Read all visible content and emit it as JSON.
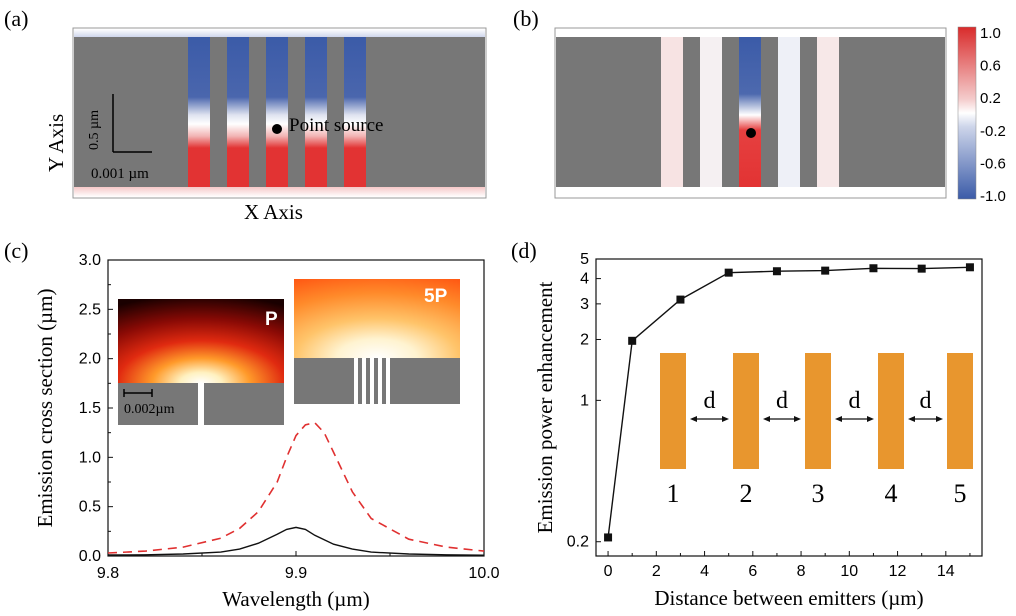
{
  "panels": {
    "a": {
      "label": "(a)",
      "x_axis_label": "X Axis",
      "y_axis_label": "Y Axis",
      "scale_vertical": "0.5 µm",
      "scale_horizontal": "0.001 µm",
      "annotation": "Point source"
    },
    "b": {
      "label": "(b)",
      "colorbar": {
        "ticks": [
          "1.0",
          "0.6",
          "0.2",
          "-0.2",
          "-0.6",
          "-1.0"
        ],
        "colors": [
          "#d92b2b",
          "#ffffff",
          "#3b5ba8"
        ]
      }
    },
    "c": {
      "label": "(c)",
      "inset_p": {
        "label": "P",
        "scale": "0.002µm"
      },
      "inset_5p": {
        "label": "5P"
      }
    },
    "d": {
      "label": "(d)",
      "schematic": {
        "gap_label": "d",
        "emitters": [
          "1",
          "2",
          "3",
          "4",
          "5"
        ]
      }
    }
  },
  "colors": {
    "grey": "#777777",
    "red": "#e03030",
    "blue": "#3b5ba8",
    "orange": "#e8962e",
    "dashed": "#e03030"
  },
  "chart_data": [
    {
      "type": "line",
      "panel": "c",
      "xlabel": "Wavelength (µm)",
      "ylabel": "Emission cross section (µm)",
      "xlim": [
        9.8,
        10.0
      ],
      "ylim": [
        0.0,
        3.0
      ],
      "xticks": [
        "9.8",
        "9.9",
        "10.0"
      ],
      "xtick_values": [
        9.8,
        9.9,
        10.0
      ],
      "yticks": [
        "0.0",
        "0.5",
        "1.0",
        "1.5",
        "2.0",
        "2.5",
        "3.0"
      ],
      "ytick_values": [
        0.0,
        0.5,
        1.0,
        1.5,
        2.0,
        2.5,
        3.0
      ],
      "series": [
        {
          "style": "solid",
          "color": "#111111",
          "x": [
            9.8,
            9.82,
            9.84,
            9.86,
            9.87,
            9.88,
            9.89,
            9.895,
            9.9,
            9.905,
            9.91,
            9.92,
            9.93,
            9.94,
            9.96,
            9.98,
            10.0
          ],
          "y": [
            0.01,
            0.012,
            0.02,
            0.04,
            0.07,
            0.13,
            0.22,
            0.27,
            0.29,
            0.27,
            0.21,
            0.12,
            0.07,
            0.04,
            0.02,
            0.012,
            0.008
          ]
        },
        {
          "style": "dashed",
          "color": "#e03030",
          "x": [
            9.8,
            9.82,
            9.84,
            9.86,
            9.87,
            9.88,
            9.89,
            9.895,
            9.9,
            9.905,
            9.91,
            9.915,
            9.92,
            9.93,
            9.94,
            9.96,
            9.98,
            10.0
          ],
          "y": [
            0.03,
            0.05,
            0.09,
            0.18,
            0.28,
            0.45,
            0.75,
            1.0,
            1.22,
            1.33,
            1.35,
            1.25,
            1.05,
            0.65,
            0.38,
            0.17,
            0.09,
            0.05
          ]
        }
      ]
    },
    {
      "type": "line",
      "panel": "d",
      "xlabel": "Distance between emitters (µm)",
      "ylabel": "Emission power enhancement",
      "xlim": [
        -0.5,
        15.5
      ],
      "ylim": [
        0.17,
        5
      ],
      "yscale": "log",
      "xticks": [
        "0",
        "2",
        "4",
        "6",
        "8",
        "10",
        "12",
        "14"
      ],
      "xtick_values": [
        0,
        2,
        4,
        6,
        8,
        10,
        12,
        14
      ],
      "yticks": [
        "0.2",
        "1",
        "2",
        "3",
        "4",
        "5"
      ],
      "ytick_values": [
        0.2,
        1,
        2,
        3,
        4,
        5
      ],
      "series": [
        {
          "marker": "square",
          "color": "#111111",
          "x": [
            0,
            1,
            3,
            5,
            7,
            9,
            11,
            13,
            15
          ],
          "y": [
            0.21,
            1.97,
            3.15,
            4.28,
            4.35,
            4.38,
            4.5,
            4.48,
            4.55
          ]
        }
      ]
    }
  ]
}
